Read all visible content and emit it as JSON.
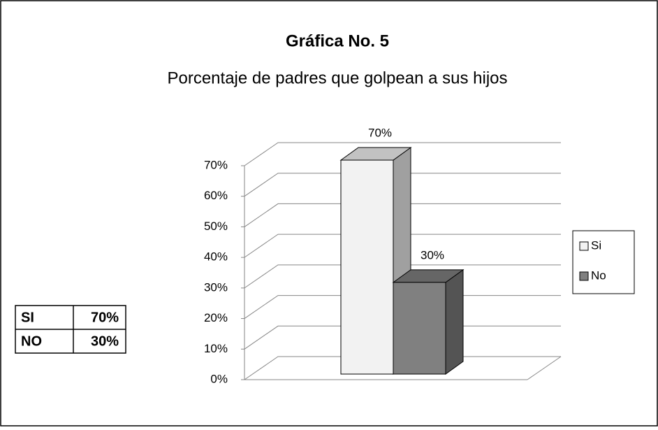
{
  "chart_data": {
    "type": "bar3d",
    "title": "Gráfica No. 5",
    "subtitle": "Porcentaje de padres que golpean a sus hijos",
    "categories": [
      null
    ],
    "series": [
      {
        "name": "Si",
        "color": "#f2f2f2",
        "values": [
          70
        ],
        "value_labels": [
          "70%"
        ]
      },
      {
        "name": "No",
        "color": "#808080",
        "values": [
          30
        ],
        "value_labels": [
          "30%"
        ]
      }
    ],
    "ylim": [
      0,
      70
    ],
    "yticks": [
      {
        "value": 0,
        "label": "0%"
      },
      {
        "value": 10,
        "label": "10%"
      },
      {
        "value": 20,
        "label": "20%"
      },
      {
        "value": 30,
        "label": "30%"
      },
      {
        "value": 40,
        "label": "40%"
      },
      {
        "value": 50,
        "label": "50%"
      },
      {
        "value": 60,
        "label": "60%"
      },
      {
        "value": 70,
        "label": "70%"
      }
    ],
    "grid": true,
    "legend": "right"
  },
  "table": {
    "rows": [
      [
        "SI",
        "70%"
      ],
      [
        "NO",
        "30%"
      ]
    ]
  }
}
